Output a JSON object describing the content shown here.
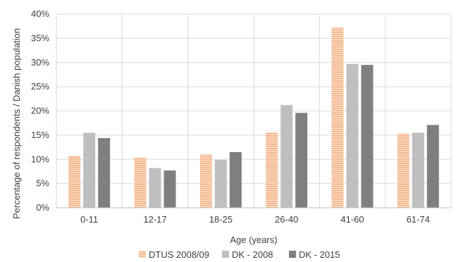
{
  "chart_data": {
    "type": "bar",
    "title": "",
    "xlabel": "Age (years)",
    "ylabel": "Percentage of respondents / Danish population",
    "categories": [
      "0-11",
      "12-17",
      "18-25",
      "26-40",
      "41-60",
      "61-74"
    ],
    "ylim": [
      0,
      40
    ],
    "yticks": [
      "0%",
      "5%",
      "10%",
      "15%",
      "20%",
      "25%",
      "30%",
      "35%",
      "40%"
    ],
    "grid": true,
    "legend_position": "bottom",
    "series": [
      {
        "name": "DTUS 2008/09",
        "values": [
          10.7,
          10.4,
          11.0,
          15.6,
          37.2,
          15.3
        ],
        "color": "#f4b183",
        "pattern": "horizontal-stripes"
      },
      {
        "name": "DK - 2008",
        "values": [
          15.5,
          8.2,
          9.9,
          21.2,
          29.7,
          15.5
        ],
        "color": "#bfbfbf"
      },
      {
        "name": "DK - 2015",
        "values": [
          14.4,
          7.7,
          11.5,
          19.6,
          29.5,
          17.1
        ],
        "color": "#7f7f7f"
      }
    ]
  }
}
